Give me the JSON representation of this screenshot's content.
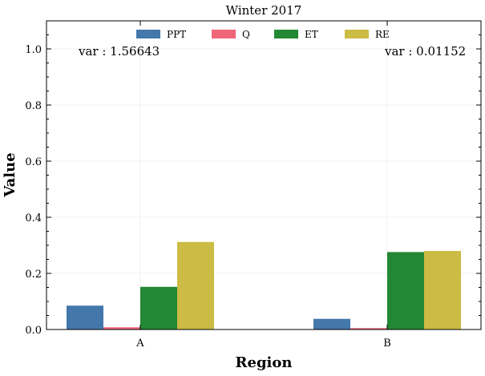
{
  "chart_data": {
    "type": "bar",
    "title": "Winter 2017",
    "xlabel": "Region",
    "ylabel": "Value",
    "categories": [
      "A",
      "B"
    ],
    "ylim": [
      0,
      1.1
    ],
    "yticks": [
      0.0,
      0.2,
      0.4,
      0.6,
      0.8,
      1.0
    ],
    "ytick_labels": [
      "0.0",
      "0.2",
      "0.4",
      "0.6",
      "0.8",
      "1.0"
    ],
    "grid": true,
    "legend_position": "top-center",
    "series": [
      {
        "name": "PPT",
        "color": "#4477aa",
        "values": [
          0.085,
          0.038
        ]
      },
      {
        "name": "Q",
        "color": "#ee6677",
        "values": [
          0.008,
          0.005
        ]
      },
      {
        "name": "ET",
        "color": "#228833",
        "values": [
          0.152,
          0.276
        ]
      },
      {
        "name": "RE",
        "color": "#ccbb44",
        "values": [
          0.312,
          0.28
        ]
      }
    ],
    "annotations": [
      "var : 1.56643",
      "var : 0.01152"
    ]
  }
}
